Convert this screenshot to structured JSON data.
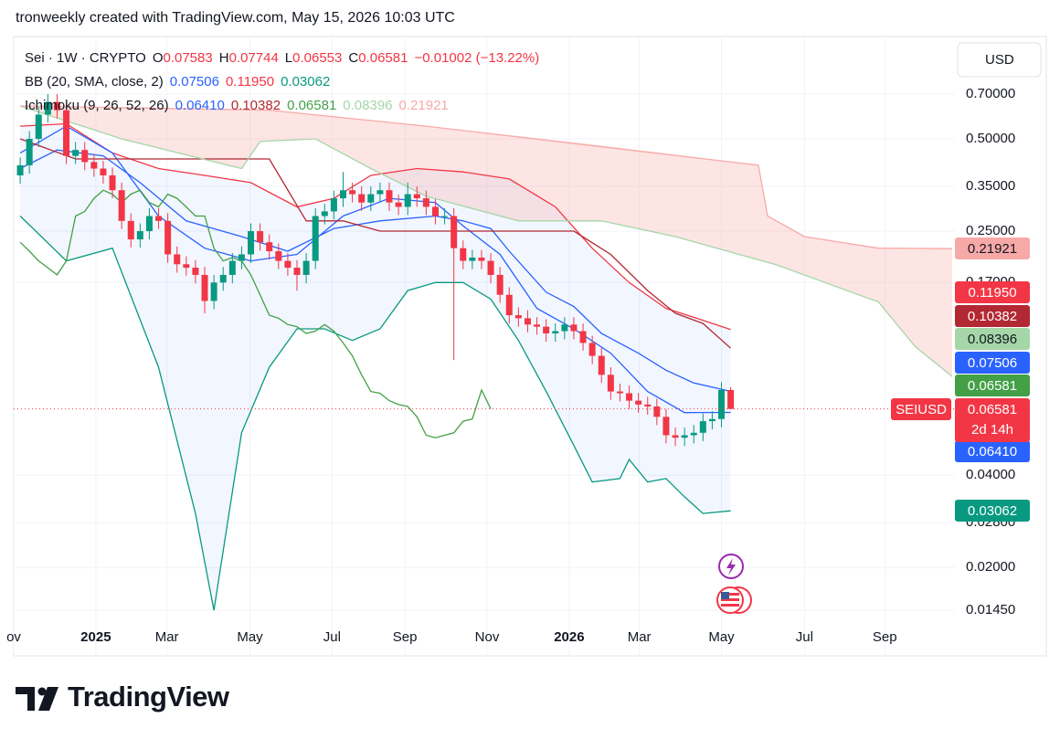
{
  "header": {
    "attribution": "tronweekly created with TradingView.com, May 15, 2026 10:03 UTC",
    "brand": "TradingView"
  },
  "chart_data": {
    "type": "candlestick",
    "symbol": {
      "title": "Sei · 1W · CRYPTO",
      "keys": [
        "O",
        "H",
        "L",
        "C"
      ],
      "change": "−0.01002 (−13.22%)",
      "color": "#f23645"
    },
    "currency": "USD",
    "last_price_tag": {
      "symbol": "SEIUSD",
      "countdown": "2d 14h",
      "color": "#f23645"
    },
    "log_scale": true,
    "grid": true,
    "up_color": "#089981",
    "down_color": "#f23645",
    "xlim": [
      -0.7,
      101.3
    ],
    "xticks": [
      {
        "value": -0.7,
        "label": "ov"
      },
      {
        "value": 8.2,
        "label": "2025"
      },
      {
        "value": 15.9,
        "label": "Mar"
      },
      {
        "value": 24.9,
        "label": "May"
      },
      {
        "value": 33.8,
        "label": "Jul"
      },
      {
        "value": 41.7,
        "label": "Sep"
      },
      {
        "value": 50.6,
        "label": "Nov"
      },
      {
        "value": 59.5,
        "label": "2026"
      },
      {
        "value": 67.1,
        "label": "Mar"
      },
      {
        "value": 76.0,
        "label": "May"
      },
      {
        "value": 85.0,
        "label": "Jul"
      },
      {
        "value": 93.7,
        "label": "Sep"
      }
    ],
    "ylim": [
      0.0103,
      1.078
    ],
    "yticks": [
      {
        "value": 0.7,
        "label": "0.70000"
      },
      {
        "value": 0.5,
        "label": "0.50000"
      },
      {
        "value": 0.35,
        "label": "0.35000"
      },
      {
        "value": 0.25,
        "label": "0.25000"
      },
      {
        "value": 0.17,
        "label": "0.17000"
      },
      {
        "value": 0.04,
        "label": "0.04000"
      },
      {
        "value": 0.028,
        "label": "0.02800"
      },
      {
        "value": 0.02,
        "label": "0.02000"
      },
      {
        "value": 0.0145,
        "label": "0.01450"
      }
    ],
    "x": [
      0,
      1,
      2,
      3,
      4,
      5,
      6,
      7,
      8,
      9,
      10,
      11,
      12,
      13,
      14,
      15,
      16,
      17,
      18,
      19,
      20,
      21,
      22,
      23,
      24,
      25,
      26,
      27,
      28,
      29,
      30,
      31,
      32,
      33,
      34,
      35,
      36,
      37,
      38,
      39,
      40,
      41,
      42,
      43,
      44,
      45,
      46,
      47,
      48,
      49,
      50,
      51,
      52,
      53,
      54,
      55,
      56,
      57,
      58,
      59,
      60,
      61,
      62,
      63,
      64,
      65,
      66,
      67,
      68,
      69,
      70,
      71,
      72,
      73,
      74,
      75,
      76,
      77
    ],
    "open": [
      0.38,
      0.41,
      0.5,
      0.6,
      0.66,
      0.62,
      0.44,
      0.46,
      0.42,
      0.4,
      0.38,
      0.34,
      0.27,
      0.235,
      0.25,
      0.28,
      0.27,
      0.21,
      0.195,
      0.19,
      0.18,
      0.148,
      0.17,
      0.18,
      0.2,
      0.21,
      0.25,
      0.23,
      0.215,
      0.2,
      0.19,
      0.18,
      0.2,
      0.28,
      0.29,
      0.32,
      0.34,
      0.33,
      0.31,
      0.33,
      0.34,
      0.31,
      0.3,
      0.33,
      0.32,
      0.3,
      0.28,
      0.28,
      0.22,
      0.2,
      0.205,
      0.2,
      0.18,
      0.155,
      0.133,
      0.13,
      0.124,
      0.122,
      0.116,
      0.118,
      0.124,
      0.118,
      0.108,
      0.098,
      0.085,
      0.075,
      0.074,
      0.07,
      0.068,
      0.067,
      0.062,
      0.054,
      0.053,
      0.054,
      0.055,
      0.06,
      0.061,
      0.07583
    ],
    "high": [
      0.435,
      0.53,
      0.636,
      0.7,
      0.7,
      0.657,
      0.488,
      0.488,
      0.445,
      0.424,
      0.403,
      0.36,
      0.286,
      0.265,
      0.297,
      0.297,
      0.286,
      0.223,
      0.207,
      0.201,
      0.191,
      0.18,
      0.191,
      0.212,
      0.223,
      0.265,
      0.265,
      0.244,
      0.228,
      0.212,
      0.201,
      0.212,
      0.297,
      0.307,
      0.339,
      0.39,
      0.36,
      0.35,
      0.35,
      0.36,
      0.36,
      0.329,
      0.36,
      0.35,
      0.339,
      0.318,
      0.297,
      0.297,
      0.233,
      0.217,
      0.217,
      0.212,
      0.191,
      0.164,
      0.141,
      0.138,
      0.131,
      0.129,
      0.125,
      0.131,
      0.131,
      0.125,
      0.114,
      0.104,
      0.09,
      0.0795,
      0.0784,
      0.0742,
      0.0721,
      0.071,
      0.0657,
      0.0572,
      0.0572,
      0.0583,
      0.0636,
      0.0647,
      0.0804,
      0.07744
    ],
    "low": [
      0.357,
      0.385,
      0.47,
      0.564,
      0.583,
      0.414,
      0.414,
      0.395,
      0.376,
      0.357,
      0.32,
      0.254,
      0.221,
      0.221,
      0.235,
      0.254,
      0.197,
      0.183,
      0.179,
      0.169,
      0.135,
      0.139,
      0.16,
      0.169,
      0.188,
      0.197,
      0.216,
      0.202,
      0.188,
      0.179,
      0.16,
      0.169,
      0.188,
      0.263,
      0.273,
      0.3,
      0.31,
      0.291,
      0.291,
      0.31,
      0.291,
      0.282,
      0.282,
      0.3,
      0.282,
      0.263,
      0.263,
      0.095,
      0.188,
      0.188,
      0.188,
      0.169,
      0.146,
      0.125,
      0.122,
      0.117,
      0.115,
      0.109,
      0.109,
      0.111,
      0.111,
      0.102,
      0.092,
      0.08,
      0.0705,
      0.0696,
      0.0658,
      0.0639,
      0.063,
      0.0583,
      0.0508,
      0.0498,
      0.0498,
      0.0508,
      0.0517,
      0.0564,
      0.0573,
      0.06553
    ],
    "close": [
      0.41,
      0.5,
      0.6,
      0.66,
      0.62,
      0.44,
      0.46,
      0.42,
      0.4,
      0.38,
      0.34,
      0.27,
      0.235,
      0.25,
      0.28,
      0.27,
      0.21,
      0.195,
      0.19,
      0.18,
      0.148,
      0.17,
      0.18,
      0.2,
      0.21,
      0.25,
      0.23,
      0.215,
      0.2,
      0.19,
      0.18,
      0.2,
      0.28,
      0.29,
      0.32,
      0.34,
      0.33,
      0.31,
      0.33,
      0.34,
      0.31,
      0.3,
      0.33,
      0.32,
      0.3,
      0.28,
      0.28,
      0.22,
      0.2,
      0.205,
      0.2,
      0.18,
      0.155,
      0.133,
      0.13,
      0.124,
      0.122,
      0.116,
      0.118,
      0.124,
      0.118,
      0.108,
      0.098,
      0.085,
      0.075,
      0.074,
      0.07,
      0.068,
      0.067,
      0.062,
      0.054,
      0.053,
      0.054,
      0.055,
      0.06,
      0.061,
      0.07583,
      0.06581
    ],
    "indicators": [
      {
        "name": "BB (20, SMA, close, 2)",
        "fill": "#2962ff",
        "lines": [
          {
            "label": "0.07506",
            "color": "#2962ff",
            "x": [
              0,
              4,
              9,
              13,
              18,
              24,
              29,
              34,
              39,
              45,
              48,
              51,
              53,
              57,
              60,
              63,
              67,
              70,
              73,
              77
            ],
            "values": [
              0.4,
              0.46,
              0.44,
              0.36,
              0.27,
              0.24,
              0.215,
              0.255,
              0.27,
              0.28,
              0.27,
              0.255,
              0.215,
              0.158,
              0.142,
              0.116,
              0.1,
              0.088,
              0.08,
              0.07506
            ]
          },
          {
            "label": "0.11950",
            "color": "#f23645",
            "x": [
              0,
              5,
              10,
              15,
              20,
              25,
              30,
              34,
              38,
              43,
              48,
              53,
              58,
              62,
              66,
              70,
              74,
              77
            ],
            "values": [
              0.55,
              0.56,
              0.45,
              0.4,
              0.38,
              0.36,
              0.3,
              0.32,
              0.38,
              0.4,
              0.39,
              0.37,
              0.3,
              0.22,
              0.17,
              0.14,
              0.128,
              0.1195
            ]
          },
          {
            "label": "0.03062",
            "color": "#089981",
            "x": [
              0,
              5,
              10,
              15,
              19,
              21,
              24,
              27,
              30,
              33,
              36,
              39,
              42,
              45,
              48,
              51,
              54,
              57,
              60,
              62,
              65,
              66,
              68,
              70,
              72,
              74,
              77
            ],
            "values": [
              0.28,
              0.2,
              0.22,
              0.09,
              0.03,
              0.0145,
              0.055,
              0.09,
              0.12,
              0.12,
              0.11,
              0.12,
              0.16,
              0.17,
              0.17,
              0.15,
              0.11,
              0.075,
              0.05,
              0.038,
              0.039,
              0.045,
              0.038,
              0.039,
              0.034,
              0.03,
              0.03062
            ]
          }
        ]
      },
      {
        "name": "Ichimoku (9, 26, 52, 26)",
        "cloud": {
          "up": "#a5d6a7",
          "down": "#f7a9a7"
        },
        "lines": [
          {
            "label": "0.06410",
            "color": "#2962ff",
            "x": [
              0,
              5,
              10,
              15,
              20,
              25,
              30,
              35,
              40,
              45,
              48,
              52,
              56,
              60,
              64,
              68,
              72,
              77
            ],
            "values": [
              0.45,
              0.55,
              0.45,
              0.28,
              0.22,
              0.2,
              0.21,
              0.28,
              0.32,
              0.31,
              0.26,
              0.21,
              0.14,
              0.12,
              0.1,
              0.075,
              0.064,
              0.0641
            ]
          },
          {
            "label": "0.10382",
            "color": "#b22833",
            "x": [
              0,
              6,
              27,
              31,
              35,
              39,
              46,
              60,
              64,
              68,
              71,
              74,
              77
            ],
            "values": [
              0.5,
              0.43,
              0.43,
              0.27,
              0.27,
              0.25,
              0.25,
              0.25,
              0.21,
              0.16,
              0.135,
              0.125,
              0.10382
            ]
          },
          {
            "label": "0.06581",
            "color": "#43a047",
            "x": [
              0,
              1,
              2,
              3,
              4,
              5,
              6,
              7,
              8,
              9,
              10,
              11,
              12,
              13,
              14,
              15,
              16,
              17,
              18,
              19,
              20,
              21,
              22,
              23,
              24,
              25,
              26,
              27,
              28,
              29,
              30,
              31,
              32,
              33,
              34,
              35,
              36,
              37,
              38,
              39,
              40,
              41,
              42,
              43,
              44,
              45,
              46,
              47,
              48,
              49,
              50,
              51
            ],
            "values": [
              0.23,
              0.215,
              0.2,
              0.19,
              0.18,
              0.2,
              0.28,
              0.29,
              0.32,
              0.34,
              0.33,
              0.31,
              0.33,
              0.34,
              0.31,
              0.3,
              0.33,
              0.32,
              0.3,
              0.28,
              0.28,
              0.22,
              0.2,
              0.205,
              0.2,
              0.18,
              0.155,
              0.133,
              0.13,
              0.124,
              0.122,
              0.116,
              0.118,
              0.124,
              0.118,
              0.108,
              0.098,
              0.085,
              0.075,
              0.074,
              0.07,
              0.068,
              0.067,
              0.062,
              0.054,
              0.053,
              0.054,
              0.055,
              0.06,
              0.061,
              0.07583,
              0.06581
            ]
          },
          {
            "label": "0.08396",
            "color": "#a5d6a7",
            "x": [
              0,
              11,
              24,
              26,
              32,
              38,
              44,
              54,
              63,
              71,
              82,
              93,
              97,
              101
            ],
            "values": [
              0.64,
              0.5,
              0.4,
              0.49,
              0.5,
              0.4,
              0.325,
              0.27,
              0.27,
              0.24,
              0.194,
              0.147,
              0.105,
              0.08396
            ]
          },
          {
            "label": "0.21921",
            "color": "#f7a9a7",
            "x": [
              0,
              27,
              44,
              80,
              81,
              85,
              93,
              101
            ],
            "values": [
              0.64,
              0.62,
              0.55,
              0.41,
              0.28,
              0.24,
              0.22,
              0.21921
            ]
          }
        ]
      }
    ]
  }
}
